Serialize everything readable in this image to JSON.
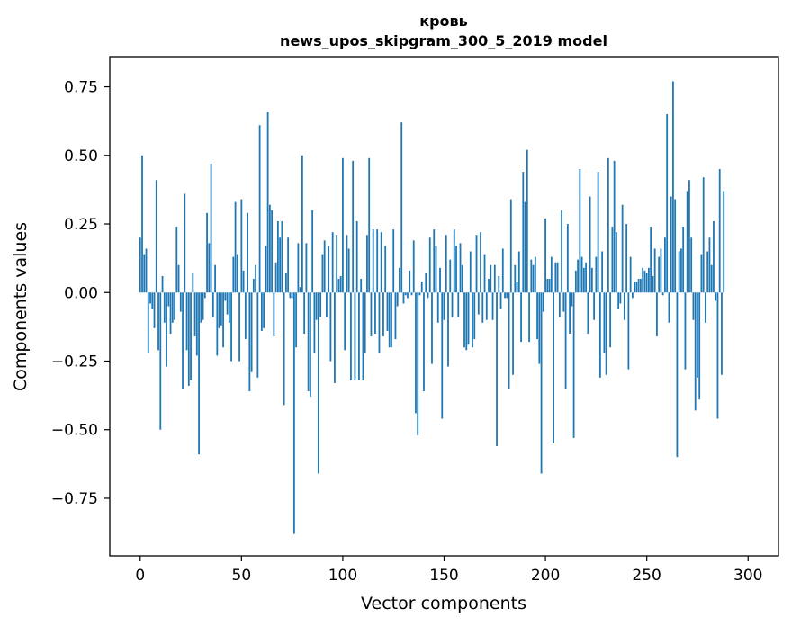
{
  "chart_data": {
    "type": "bar",
    "title_line1": "кровь",
    "title_line2": "news_upos_skipgram_300_5_2019 model",
    "xlabel": "Vector components",
    "ylabel": "Components values",
    "xlim": [
      -15,
      315
    ],
    "ylim": [
      -0.96,
      0.86
    ],
    "xticks": [
      0,
      50,
      100,
      150,
      200,
      250,
      300
    ],
    "xtick_labels": [
      "0",
      "50",
      "100",
      "150",
      "200",
      "250",
      "300"
    ],
    "yticks": [
      0.75,
      0.5,
      0.25,
      0.0,
      -0.25,
      -0.5,
      -0.75
    ],
    "ytick_labels": [
      "0.75",
      "0.50",
      "0.25",
      "0.00",
      "−0.25",
      "−0.50",
      "−0.75"
    ],
    "bar_color": "#1f77b4",
    "values": [
      0.2,
      0.5,
      0.14,
      0.16,
      -0.22,
      -0.04,
      -0.06,
      -0.13,
      0.41,
      -0.21,
      -0.5,
      0.06,
      -0.11,
      -0.27,
      -0.05,
      -0.15,
      -0.11,
      -0.1,
      0.24,
      0.1,
      -0.07,
      -0.35,
      0.36,
      -0.21,
      -0.34,
      -0.32,
      0.07,
      -0.16,
      -0.23,
      -0.59,
      -0.11,
      -0.1,
      -0.02,
      0.29,
      0.18,
      0.47,
      -0.09,
      0.1,
      -0.23,
      -0.13,
      -0.12,
      -0.2,
      -0.03,
      -0.08,
      -0.11,
      -0.25,
      0.13,
      0.33,
      0.14,
      -0.25,
      0.34,
      0.08,
      -0.17,
      0.29,
      -0.36,
      -0.29,
      0.05,
      0.1,
      -0.31,
      0.61,
      -0.14,
      -0.13,
      0.17,
      0.66,
      0.32,
      0.3,
      -0.16,
      0.11,
      0.26,
      0.2,
      0.26,
      -0.41,
      0.07,
      0.2,
      -0.02,
      -0.02,
      -0.88,
      -0.2,
      0.18,
      0.02,
      0.5,
      -0.15,
      0.18,
      -0.36,
      -0.38,
      0.3,
      -0.22,
      -0.1,
      -0.66,
      -0.09,
      0.14,
      0.19,
      -0.09,
      0.17,
      -0.25,
      0.22,
      -0.33,
      0.21,
      0.05,
      0.06,
      0.49,
      -0.21,
      0.21,
      0.16,
      -0.32,
      0.48,
      -0.32,
      0.26,
      -0.32,
      0.05,
      -0.32,
      -0.22,
      0.21,
      0.49,
      -0.16,
      0.23,
      -0.15,
      0.23,
      -0.22,
      0.22,
      -0.16,
      0.17,
      -0.14,
      -0.2,
      -0.2,
      0.23,
      -0.17,
      -0.05,
      0.09,
      0.62,
      -0.04,
      -0.01,
      -0.02,
      0.08,
      -0.01,
      0.19,
      -0.44,
      -0.52,
      -0.01,
      0.04,
      -0.36,
      0.07,
      -0.02,
      0.2,
      -0.26,
      0.23,
      0.17,
      -0.11,
      0.09,
      -0.46,
      -0.1,
      0.21,
      -0.27,
      0.12,
      -0.09,
      0.23,
      0.17,
      -0.09,
      0.18,
      0.1,
      -0.2,
      -0.21,
      -0.19,
      0.15,
      -0.2,
      -0.17,
      0.21,
      -0.08,
      0.22,
      -0.11,
      0.14,
      -0.1,
      0.05,
      0.1,
      -0.1,
      0.1,
      -0.56,
      0.06,
      -0.06,
      0.16,
      -0.02,
      -0.02,
      -0.35,
      0.34,
      -0.3,
      0.1,
      0.04,
      0.15,
      -0.18,
      0.44,
      0.33,
      0.52,
      -0.18,
      0.12,
      0.1,
      0.13,
      -0.17,
      -0.26,
      -0.66,
      -0.07,
      0.27,
      0.05,
      0.05,
      0.13,
      -0.55,
      0.11,
      0.11,
      -0.09,
      0.3,
      -0.07,
      -0.35,
      0.25,
      -0.15,
      -0.05,
      -0.53,
      0.08,
      0.12,
      0.45,
      0.13,
      0.09,
      0.11,
      -0.15,
      0.35,
      0.09,
      -0.1,
      0.13,
      0.44,
      -0.31,
      0.15,
      -0.22,
      -0.3,
      0.49,
      -0.2,
      0.24,
      0.48,
      0.22,
      -0.06,
      -0.04,
      0.32,
      -0.1,
      0.25,
      -0.28,
      0.13,
      -0.02,
      0.04,
      0.04,
      0.05,
      0.05,
      0.09,
      0.08,
      0.07,
      0.09,
      0.24,
      0.06,
      0.16,
      -0.16,
      0.13,
      0.16,
      -0.01,
      0.2,
      0.65,
      -0.11,
      0.35,
      0.77,
      0.34,
      -0.6,
      0.15,
      0.16,
      0.24,
      -0.28,
      0.37,
      0.41,
      0.2,
      -0.1,
      -0.43,
      -0.31,
      -0.39,
      0.14,
      0.42,
      -0.11,
      0.15,
      0.2,
      0.1,
      0.26,
      -0.03,
      -0.46,
      0.45,
      -0.3,
      0.37
    ]
  }
}
